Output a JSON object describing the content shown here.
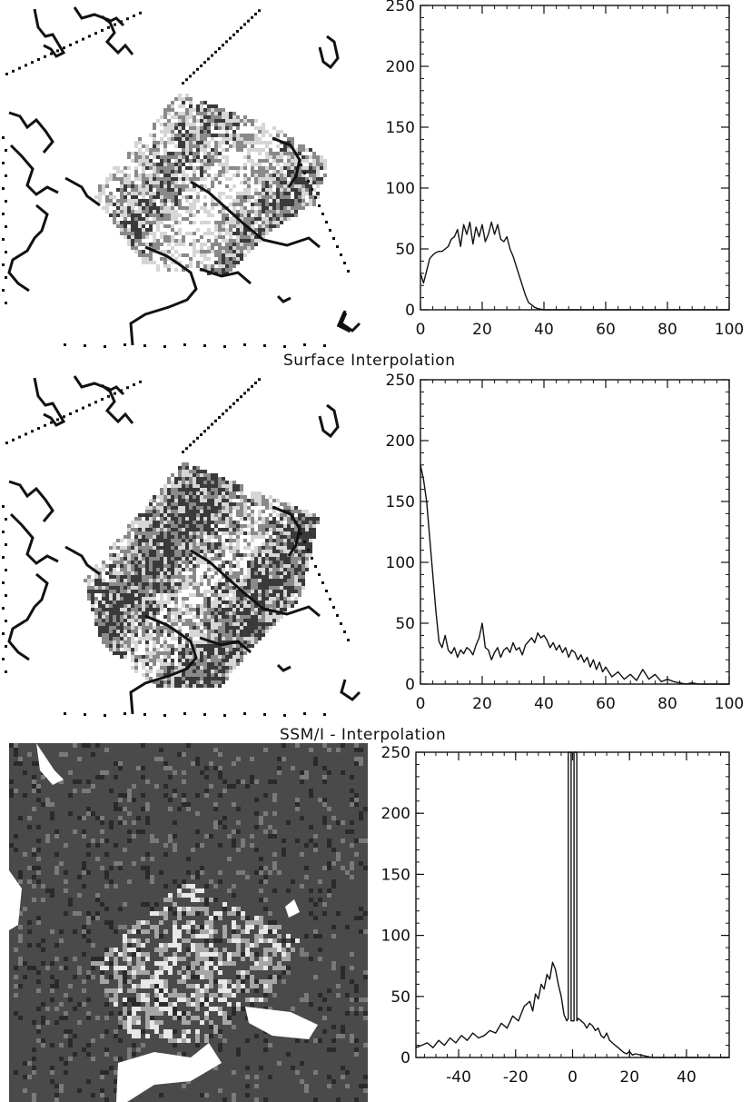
{
  "captions": [
    "Surface Interpolation",
    "SSM/I - Interpolation"
  ],
  "colors": {
    "ink": "#111111",
    "map_dark": "#3a3a3a",
    "map_mid": "#8a8a8a",
    "map_light": "#d6d6d6"
  },
  "maps": [
    {
      "description_name": "ssmi-retrieval-map"
    },
    {
      "description_name": "surface-interpolation-map"
    },
    {
      "description_name": "difference-map"
    }
  ],
  "chart_data": [
    {
      "type": "line",
      "title": "",
      "xlabel": "",
      "ylabel": "",
      "xlim": [
        0,
        100
      ],
      "ylim": [
        0,
        250
      ],
      "xticks": [
        0,
        20,
        40,
        60,
        80,
        100
      ],
      "yticks": [
        0,
        50,
        100,
        150,
        200,
        250
      ],
      "grid": false,
      "series": [
        {
          "x": [
            0,
            1,
            2,
            3,
            4,
            5,
            6,
            7,
            8,
            9,
            10,
            11,
            12,
            13,
            14,
            15,
            16,
            17,
            18,
            19,
            20,
            21,
            22,
            23,
            24,
            25,
            26,
            27,
            28,
            29,
            30,
            31,
            32,
            33,
            34,
            35,
            36,
            37,
            38,
            40,
            42,
            45,
            50,
            100
          ],
          "y": [
            30,
            22,
            32,
            42,
            45,
            47,
            48,
            48,
            50,
            52,
            58,
            60,
            66,
            52,
            70,
            62,
            72,
            54,
            68,
            60,
            70,
            56,
            62,
            72,
            62,
            70,
            58,
            56,
            60,
            50,
            44,
            36,
            28,
            20,
            12,
            6,
            4,
            2,
            1,
            0,
            0,
            0,
            0,
            0
          ]
        }
      ]
    },
    {
      "type": "line",
      "title": "",
      "xlabel": "",
      "ylabel": "",
      "xlim": [
        0,
        100
      ],
      "ylim": [
        0,
        250
      ],
      "xticks": [
        0,
        20,
        40,
        60,
        80,
        100
      ],
      "yticks": [
        0,
        50,
        100,
        150,
        200,
        250
      ],
      "grid": false,
      "series": [
        {
          "x": [
            0,
            1,
            2,
            3,
            4,
            5,
            6,
            7,
            8,
            9,
            10,
            11,
            12,
            13,
            14,
            15,
            16,
            17,
            18,
            19,
            20,
            21,
            22,
            23,
            24,
            25,
            26,
            27,
            28,
            29,
            30,
            31,
            32,
            33,
            34,
            35,
            36,
            37,
            38,
            39,
            40,
            41,
            42,
            43,
            44,
            45,
            46,
            47,
            48,
            49,
            50,
            51,
            52,
            53,
            54,
            55,
            56,
            57,
            58,
            59,
            60,
            62,
            64,
            66,
            68,
            70,
            72,
            74,
            76,
            78,
            80,
            82,
            84,
            86,
            88,
            90,
            95,
            100
          ],
          "y": [
            180,
            168,
            150,
            120,
            90,
            60,
            35,
            30,
            40,
            28,
            25,
            30,
            22,
            28,
            25,
            30,
            28,
            24,
            32,
            38,
            50,
            30,
            28,
            20,
            26,
            30,
            22,
            28,
            30,
            26,
            34,
            28,
            30,
            24,
            32,
            35,
            38,
            34,
            42,
            38,
            40,
            36,
            30,
            34,
            28,
            32,
            26,
            30,
            22,
            28,
            26,
            20,
            24,
            18,
            22,
            14,
            20,
            12,
            18,
            10,
            14,
            6,
            10,
            4,
            8,
            3,
            12,
            4,
            8,
            2,
            4,
            2,
            1,
            0,
            1,
            0,
            0,
            0
          ]
        }
      ]
    },
    {
      "type": "line",
      "title": "",
      "xlabel": "",
      "ylabel": "",
      "xlim": [
        -55,
        55
      ],
      "ylim": [
        0,
        250
      ],
      "xticks": [
        -40,
        -20,
        0,
        20,
        40
      ],
      "yticks": [
        0,
        50,
        100,
        150,
        200,
        250
      ],
      "grid": false,
      "series": [
        {
          "x": [
            -55,
            -53,
            -51,
            -49,
            -47,
            -45,
            -43,
            -41,
            -39,
            -37,
            -35,
            -33,
            -31,
            -29,
            -27,
            -25,
            -23,
            -21,
            -19,
            -17,
            -15,
            -14,
            -13,
            -12,
            -11,
            -10,
            -9,
            -8,
            -7,
            -6,
            -5,
            -4,
            -3,
            -2,
            -1.5,
            -1.5,
            -0.5,
            -0.5,
            0.5,
            0.5,
            1.5,
            1.5,
            2,
            3,
            4,
            5,
            6,
            7,
            8,
            9,
            10,
            11,
            12,
            13,
            14,
            15,
            16,
            17,
            18,
            19,
            20,
            21,
            22,
            24,
            26,
            28,
            30,
            35,
            40,
            45,
            50,
            55
          ],
          "y": [
            8,
            10,
            12,
            8,
            14,
            10,
            16,
            12,
            18,
            14,
            20,
            16,
            18,
            22,
            20,
            28,
            24,
            34,
            30,
            42,
            46,
            38,
            52,
            48,
            60,
            56,
            68,
            64,
            78,
            72,
            60,
            50,
            35,
            30,
            32,
            250,
            250,
            30,
            30,
            250,
            250,
            30,
            32,
            30,
            28,
            24,
            28,
            26,
            22,
            24,
            18,
            16,
            20,
            14,
            12,
            10,
            8,
            6,
            4,
            3,
            5,
            2,
            3,
            2,
            1,
            0,
            0,
            0,
            0,
            0,
            0,
            0
          ]
        }
      ]
    }
  ]
}
